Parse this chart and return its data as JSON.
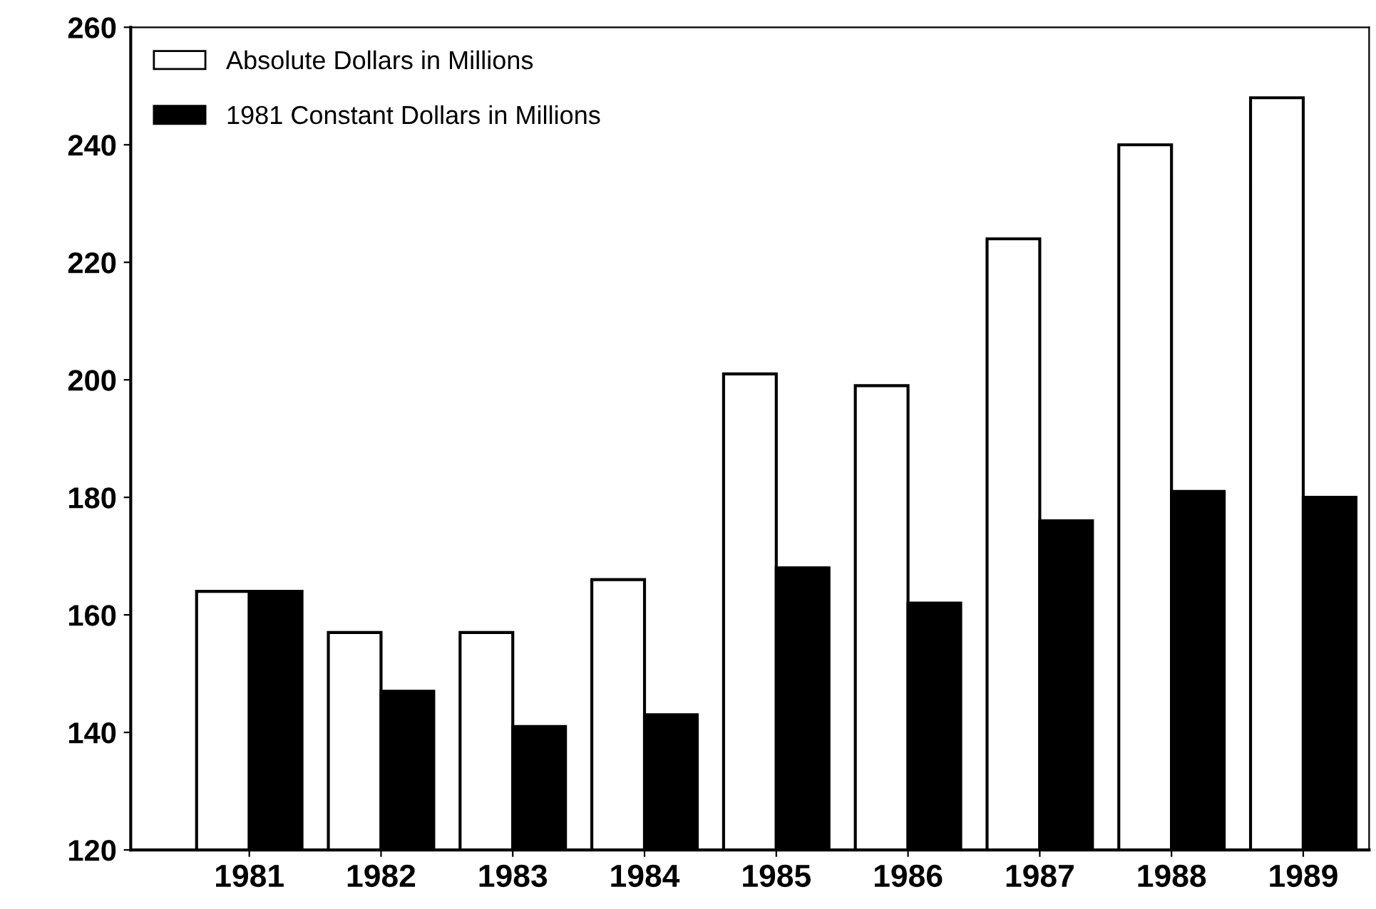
{
  "chart_data": {
    "type": "bar",
    "categories": [
      "1981",
      "1982",
      "1983",
      "1984",
      "1985",
      "1986",
      "1987",
      "1988",
      "1989"
    ],
    "series": [
      {
        "name": "Absolute Dollars in Millions",
        "color": "#ffffff",
        "values": [
          164,
          157,
          157,
          166,
          201,
          199,
          224,
          240,
          248
        ]
      },
      {
        "name": "1981 Constant Dollars in Millions",
        "color": "#000000",
        "values": [
          164,
          147,
          141,
          143,
          168,
          162,
          176,
          181,
          180
        ]
      }
    ],
    "ylim": [
      120,
      260
    ],
    "yticks": [
      120,
      140,
      160,
      180,
      200,
      220,
      240,
      260
    ],
    "grid": false,
    "legend": "top left"
  }
}
